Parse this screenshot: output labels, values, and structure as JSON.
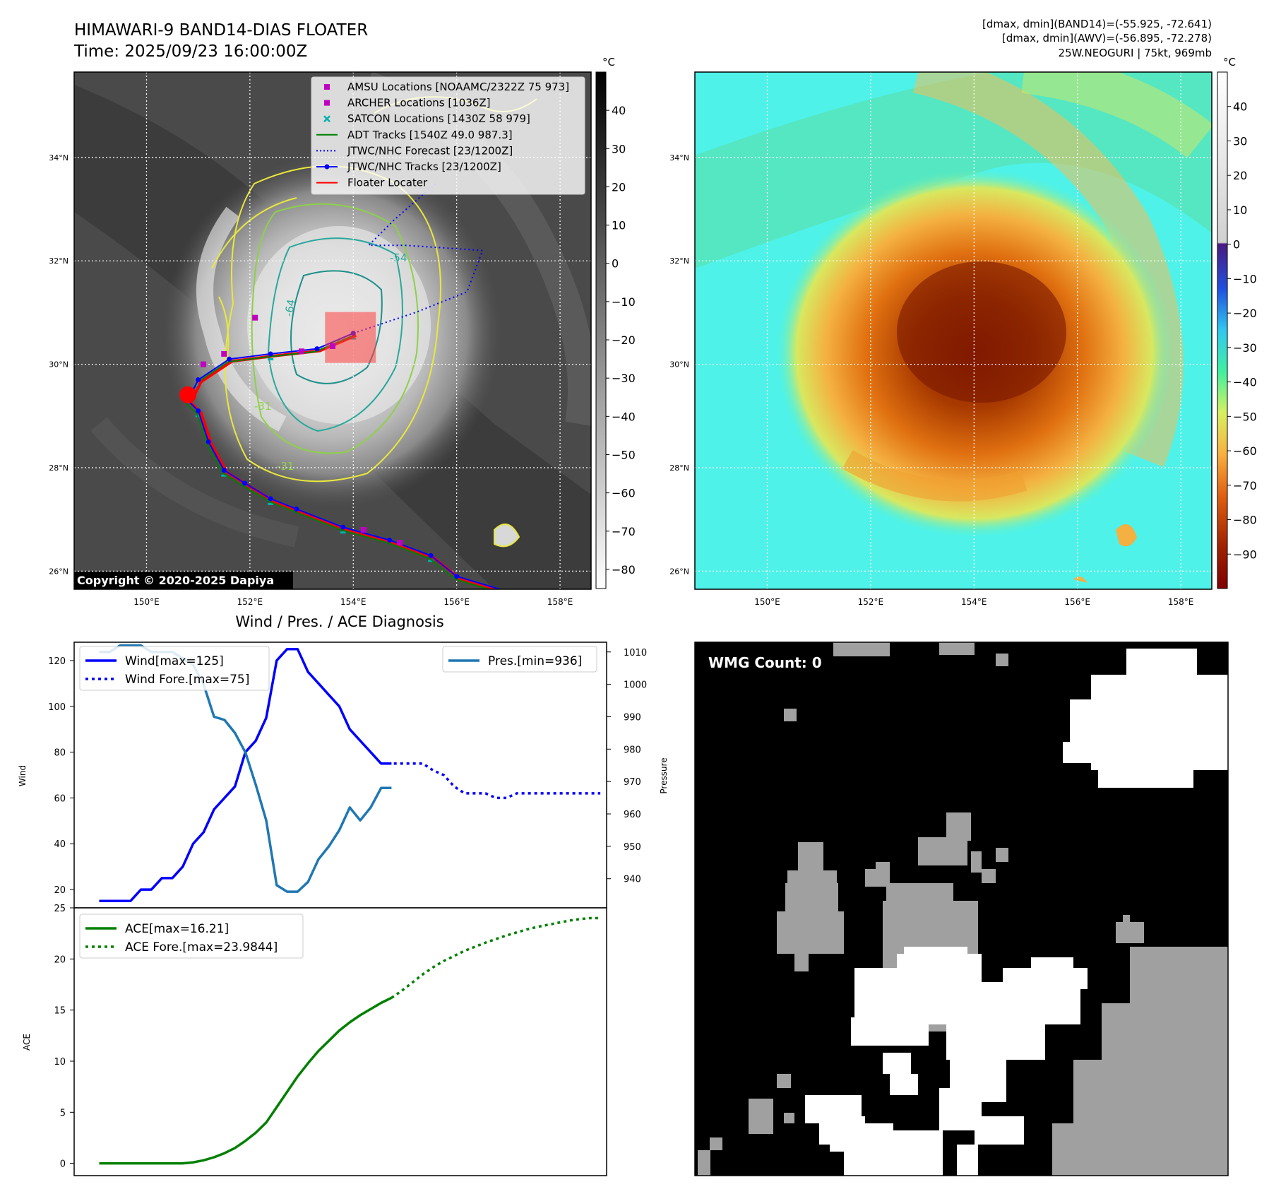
{
  "header": {
    "title_line1": "HIMAWARI-9 BAND14-DIAS FLOATER",
    "title_line2": "Time: 2025/09/23 16:00:00Z",
    "info_line1": "[dmax, dmin](BAND14)=(-55.925, -72.641)",
    "info_line2": "[dmax, dmin](AWV)=(-56.895, -72.278)",
    "info_line3": "25W.NEOGURI | 75kt, 969mb"
  },
  "map_axes": {
    "lat_labels": [
      "34°N",
      "32°N",
      "30°N",
      "28°N",
      "26°N"
    ],
    "lon_labels": [
      "150°E",
      "152°E",
      "154°E",
      "156°E",
      "158°E"
    ],
    "lat_values": [
      34,
      32,
      30,
      28,
      26
    ],
    "lon_values": [
      150,
      152,
      154,
      156,
      158
    ],
    "lon_range": [
      148.6,
      158.6
    ],
    "lat_range": [
      25.65,
      35.65
    ]
  },
  "ir_panel": {
    "copyright": "Copyright © 2020-2025 Dapiya",
    "colorbar_unit": "°C",
    "colorbar_ticks": [
      "40",
      "30",
      "20",
      "10",
      "0",
      "−10",
      "−20",
      "−30",
      "−40",
      "−50",
      "−60",
      "−70",
      "−80"
    ],
    "colorbar_values": [
      40,
      30,
      20,
      10,
      0,
      -10,
      -20,
      -30,
      -40,
      -50,
      -60,
      -70,
      -80
    ],
    "colorbar_range": [
      -85,
      50
    ],
    "contour_labels": [
      "-54",
      "-64",
      "-31",
      "-31"
    ],
    "legend": [
      {
        "label": "AMSU Locations [NOAAMC/2322Z 75 973]",
        "color": "#c000c0",
        "marker": "square"
      },
      {
        "label": "ARCHER Locations [1036Z]",
        "color": "#c000c0",
        "marker": "square"
      },
      {
        "label": "SATCON Locations [1430Z 58 979]",
        "color": "#00b0b0",
        "marker": "x"
      },
      {
        "label": "ADT Tracks [1540Z 49.0 987.3]",
        "color": "#008000",
        "marker": "line"
      },
      {
        "label": "JTWC/NHC Forecast [23/1200Z]",
        "color": "#0000ff",
        "marker": "dotted"
      },
      {
        "label": "JTWC/NHC Tracks [23/1200Z]",
        "color": "#0000ff",
        "marker": "line-dot"
      },
      {
        "label": "Floater Locater",
        "color": "#ff0000",
        "marker": "line"
      }
    ],
    "track_points": [
      [
        157.0,
        25.6
      ],
      [
        156.0,
        25.9
      ],
      [
        155.5,
        26.3
      ],
      [
        154.7,
        26.6
      ],
      [
        153.8,
        26.85
      ],
      [
        152.9,
        27.2
      ],
      [
        152.4,
        27.4
      ],
      [
        151.9,
        27.7
      ],
      [
        151.5,
        27.95
      ],
      [
        151.2,
        28.5
      ],
      [
        151.0,
        29.1
      ],
      [
        150.8,
        29.3
      ],
      [
        151.0,
        29.7
      ],
      [
        151.6,
        30.1
      ],
      [
        152.4,
        30.2
      ],
      [
        153.3,
        30.3
      ],
      [
        154.0,
        30.6
      ]
    ],
    "forecast_points": [
      [
        154.0,
        30.6
      ],
      [
        155.2,
        31.0
      ],
      [
        156.2,
        31.4
      ],
      [
        156.5,
        32.2
      ],
      [
        155.0,
        32.3
      ],
      [
        154.3,
        32.3
      ],
      [
        154.8,
        32.8
      ],
      [
        155.6,
        33.5
      ]
    ]
  },
  "awv_panel": {
    "colorbar_unit": "°C",
    "colorbar_ticks": [
      "40",
      "30",
      "20",
      "10",
      "0",
      "−10",
      "−20",
      "−30",
      "−40",
      "−50",
      "−60",
      "−70",
      "−80",
      "−90"
    ],
    "colorbar_values": [
      40,
      30,
      20,
      10,
      0,
      -10,
      -20,
      -30,
      -40,
      -50,
      -60,
      -70,
      -80,
      -90
    ],
    "colorbar_range": [
      -100,
      50
    ]
  },
  "diagnosis_title": "Wind / Pres. / ACE Diagnosis",
  "wmg_panel": {
    "label": "WMG Count: 0"
  },
  "chart_data": [
    {
      "type": "line",
      "title": "Wind / Pres. / ACE Diagnosis",
      "xlabel": "",
      "ylabel": "Wind",
      "ylabel_right": "Pressure",
      "ylim": [
        12,
        128
      ],
      "ylim_right": [
        931,
        1013
      ],
      "yticks": [
        20,
        40,
        60,
        80,
        100,
        120
      ],
      "yticks_right": [
        940,
        950,
        960,
        970,
        980,
        990,
        1000,
        1010
      ],
      "x": [
        0,
        1,
        2,
        3,
        4,
        5,
        6,
        7,
        8,
        9,
        10,
        11,
        12,
        13,
        14,
        15,
        16,
        17,
        18,
        19,
        20,
        21,
        22,
        23,
        24,
        25,
        26,
        27,
        28,
        29,
        30,
        31,
        32,
        33,
        34,
        35,
        36,
        37,
        38,
        39,
        40,
        41,
        42,
        43,
        44,
        45,
        46,
        47,
        48
      ],
      "series": [
        {
          "name": "Wind[max=125]",
          "axis": "left",
          "style": "solid",
          "color": "#0000ff",
          "values": [
            15,
            15,
            15,
            15,
            20,
            20,
            25,
            25,
            30,
            40,
            45,
            55,
            60,
            65,
            80,
            85,
            95,
            120,
            125,
            125,
            115,
            110,
            105,
            100,
            90,
            85,
            80,
            75,
            75,
            null,
            null,
            null,
            null,
            null,
            null,
            null,
            null,
            null,
            null,
            null,
            null,
            null,
            null,
            null,
            null,
            null,
            null,
            null,
            null
          ]
        },
        {
          "name": "Wind Fore.[max=75]",
          "axis": "left",
          "style": "dotted",
          "color": "#0000ff",
          "values": [
            null,
            null,
            null,
            null,
            null,
            null,
            null,
            null,
            null,
            null,
            null,
            null,
            null,
            null,
            null,
            null,
            null,
            null,
            null,
            null,
            null,
            null,
            null,
            null,
            null,
            null,
            null,
            75,
            75,
            75,
            75,
            75,
            72,
            70,
            65,
            62,
            62,
            62,
            60,
            60,
            62,
            62,
            62,
            62,
            62,
            62,
            62,
            62,
            62
          ]
        },
        {
          "name": "Pres.[min=936]",
          "axis": "right",
          "style": "solid",
          "color": "#1f77b4",
          "values": [
            1010,
            1010,
            1012,
            1012,
            1012,
            1010,
            1010,
            1010,
            1008,
            1006,
            1000,
            990,
            989,
            985,
            979,
            969,
            958,
            938,
            936,
            936,
            939,
            946,
            950,
            955,
            962,
            958,
            962,
            968,
            968,
            null,
            null,
            null,
            null,
            null,
            null,
            null,
            null,
            null,
            null,
            null,
            null,
            null,
            null,
            null,
            null,
            null,
            null,
            null,
            null
          ]
        }
      ]
    },
    {
      "type": "line",
      "xlabel": "",
      "ylabel": "ACE",
      "ylim": [
        -1.2,
        25
      ],
      "yticks": [
        0,
        5,
        10,
        15,
        20,
        25
      ],
      "x": [
        0,
        1,
        2,
        3,
        4,
        5,
        6,
        7,
        8,
        9,
        10,
        11,
        12,
        13,
        14,
        15,
        16,
        17,
        18,
        19,
        20,
        21,
        22,
        23,
        24,
        25,
        26,
        27,
        28,
        29,
        30,
        31,
        32,
        33,
        34,
        35,
        36,
        37,
        38,
        39,
        40,
        41,
        42,
        43,
        44,
        45,
        46,
        47,
        48
      ],
      "series": [
        {
          "name": "ACE[max=16.21]",
          "style": "solid",
          "color": "#008000",
          "values": [
            0,
            0,
            0,
            0,
            0,
            0,
            0,
            0,
            0,
            0.1,
            0.3,
            0.6,
            1.0,
            1.5,
            2.2,
            3.0,
            4.0,
            5.5,
            7.0,
            8.5,
            9.8,
            11.0,
            12.0,
            13.0,
            13.8,
            14.5,
            15.1,
            15.7,
            16.2,
            null,
            null,
            null,
            null,
            null,
            null,
            null,
            null,
            null,
            null,
            null,
            null,
            null,
            null,
            null,
            null,
            null,
            null,
            null,
            null
          ]
        },
        {
          "name": "ACE Fore.[max=23.9844]",
          "style": "dotted",
          "color": "#008000",
          "values": [
            null,
            null,
            null,
            null,
            null,
            null,
            null,
            null,
            null,
            null,
            null,
            null,
            null,
            null,
            null,
            null,
            null,
            null,
            null,
            null,
            null,
            null,
            null,
            null,
            null,
            null,
            null,
            null,
            16.2,
            16.9,
            17.7,
            18.5,
            19.2,
            19.8,
            20.3,
            20.8,
            21.2,
            21.6,
            21.95,
            22.3,
            22.6,
            22.9,
            23.15,
            23.35,
            23.55,
            23.75,
            23.9,
            24.0,
            24.0
          ]
        }
      ]
    }
  ]
}
